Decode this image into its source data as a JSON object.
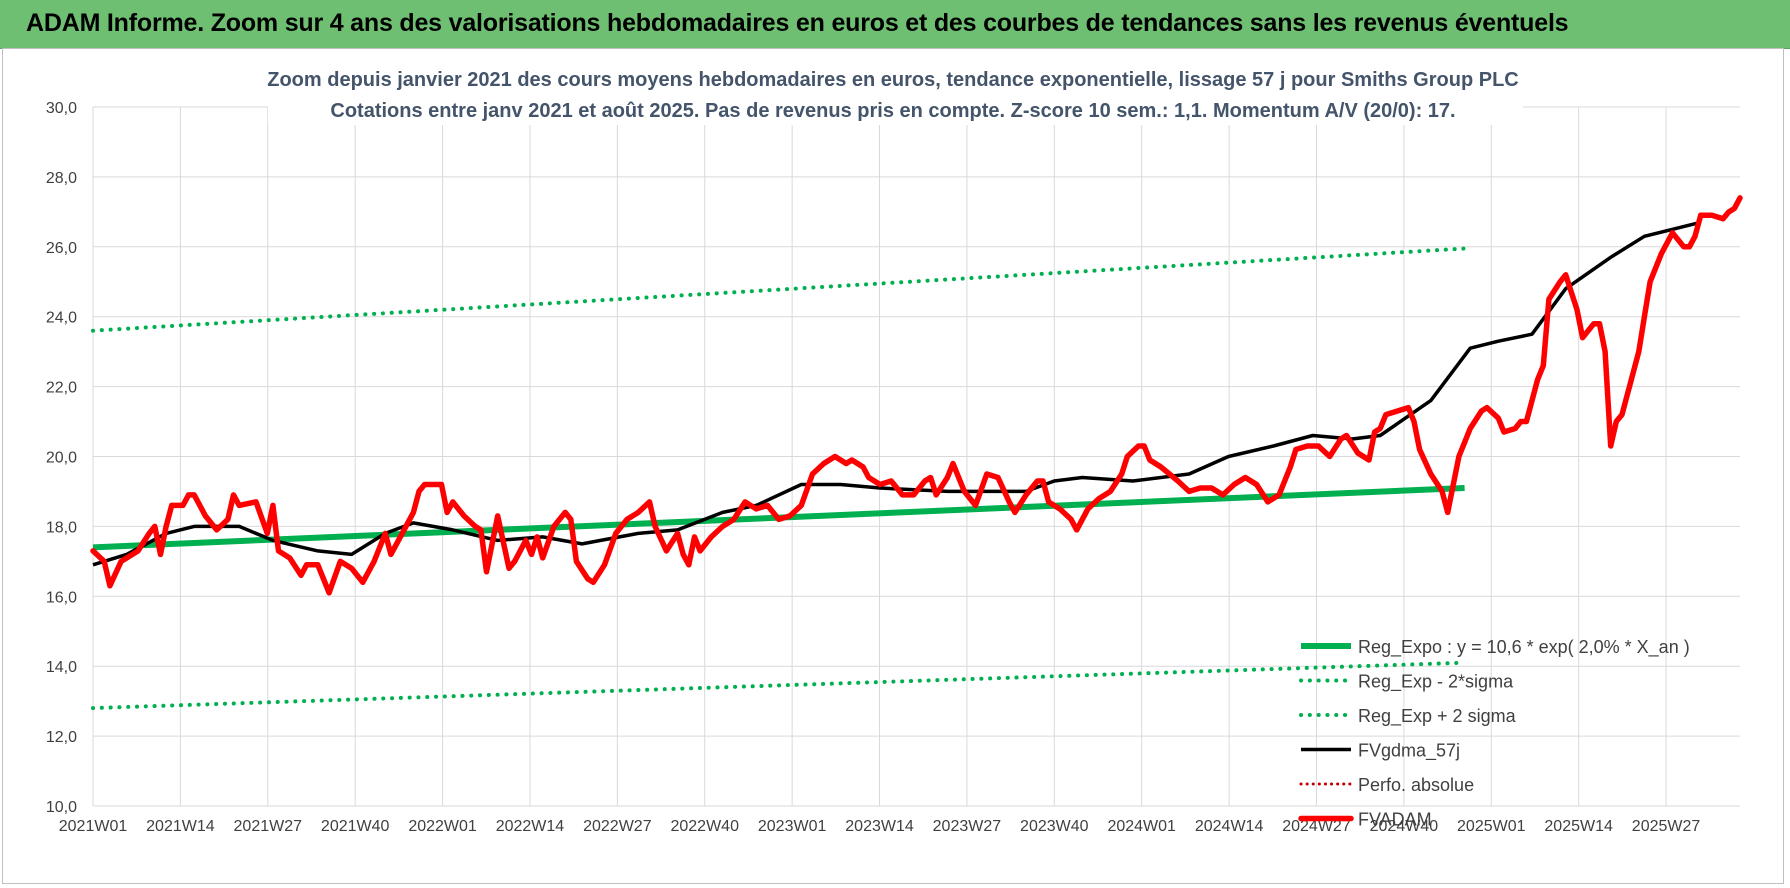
{
  "header": {
    "title": "ADAM Informe. Zoom sur 4 ans des valorisations hebdomadaires en euros et des courbes de tendances sans les revenus éventuels"
  },
  "chart_data": {
    "type": "line",
    "title": "Zoom depuis janvier 2021 des cours moyens hebdomadaires en euros, tendance exponentielle, lissage 57 j pour Smiths Group PLC",
    "subtitle": "Cotations entre janv 2021 et août 2025.  Pas de revenus pris en compte. Z-score 10 sem.: 1,1. Momentum A/V (20/0): 17.",
    "xlabel": "",
    "ylabel": "",
    "ylim": [
      10,
      30
    ],
    "yticks": [
      "10,0",
      "12,0",
      "14,0",
      "16,0",
      "18,0",
      "20,0",
      "22,0",
      "24,0",
      "26,0",
      "28,0",
      "30,0"
    ],
    "xticks": [
      "2021W01",
      "2021W14",
      "2021W27",
      "2021W40",
      "2022W01",
      "2022W14",
      "2022W27",
      "2022W40",
      "2023W01",
      "2023W14",
      "2023W27",
      "2023W40",
      "2024W01",
      "2024W14",
      "2024W27",
      "2024W40",
      "2025W01",
      "2025W14",
      "2025W27"
    ],
    "n_weeks": 245,
    "grid": true,
    "legend_position": "bottom-right",
    "colors": {
      "green": "#00b050",
      "black": "#000000",
      "red": "#ff0000",
      "dotted_red": "#c00000"
    },
    "series": [
      {
        "name": "Reg_Expo : y = 10,6 * exp( 2,0% *  X_an )",
        "style": "solid-green",
        "points": [
          [
            0,
            17.4
          ],
          [
            244,
            19.1
          ]
        ]
      },
      {
        "name": "Reg_Exp - 2*sigma",
        "style": "dotted-green",
        "points": [
          [
            0,
            12.8
          ],
          [
            244,
            14.1
          ]
        ]
      },
      {
        "name": "Reg_Exp + 2 sigma",
        "style": "dotted-green",
        "points": [
          [
            0,
            23.6
          ],
          [
            244,
            25.95
          ]
        ]
      },
      {
        "name": "FVgdma_57j",
        "style": "solid-black",
        "points": [
          [
            0,
            16.9
          ],
          [
            6,
            17.2
          ],
          [
            13,
            17.8
          ],
          [
            18,
            18.0
          ],
          [
            26,
            18.0
          ],
          [
            32,
            17.6
          ],
          [
            40,
            17.3
          ],
          [
            46,
            17.2
          ],
          [
            52,
            17.8
          ],
          [
            57,
            18.1
          ],
          [
            64,
            17.9
          ],
          [
            72,
            17.6
          ],
          [
            80,
            17.7
          ],
          [
            87,
            17.5
          ],
          [
            97,
            17.8
          ],
          [
            104,
            17.9
          ],
          [
            112,
            18.4
          ],
          [
            118,
            18.6
          ],
          [
            126,
            19.2
          ],
          [
            133,
            19.2
          ],
          [
            140,
            19.1
          ],
          [
            152,
            19.0
          ],
          [
            166,
            19.0
          ],
          [
            171,
            19.3
          ],
          [
            176,
            19.4
          ],
          [
            185,
            19.3
          ],
          [
            195,
            19.5
          ],
          [
            202,
            20.0
          ],
          [
            210,
            20.3
          ],
          [
            217,
            20.6
          ],
          [
            224,
            20.5
          ],
          [
            229,
            20.6
          ],
          [
            238,
            21.6
          ],
          [
            245,
            23.1
          ],
          [
            250,
            23.3
          ],
          [
            256,
            23.5
          ],
          [
            262,
            24.8
          ],
          [
            270,
            25.7
          ],
          [
            276,
            26.3
          ],
          [
            286,
            26.7
          ]
        ]
      },
      {
        "name": "Perfo. absolue",
        "style": "dotted-red",
        "points": []
      },
      {
        "name": "FVADAM",
        "style": "solid-red",
        "points": [
          [
            0,
            17.3
          ],
          [
            2,
            17.0
          ],
          [
            3,
            16.3
          ],
          [
            5,
            17.0
          ],
          [
            8,
            17.3
          ],
          [
            10,
            17.8
          ],
          [
            11,
            18.0
          ],
          [
            12,
            17.2
          ],
          [
            13,
            18.0
          ],
          [
            14,
            18.6
          ],
          [
            16,
            18.6
          ],
          [
            17,
            18.9
          ],
          [
            18,
            18.9
          ],
          [
            20,
            18.3
          ],
          [
            22,
            17.9
          ],
          [
            24,
            18.2
          ],
          [
            25,
            18.9
          ],
          [
            26,
            18.6
          ],
          [
            29,
            18.7
          ],
          [
            31,
            17.8
          ],
          [
            32,
            18.6
          ],
          [
            33,
            17.3
          ],
          [
            35,
            17.1
          ],
          [
            37,
            16.6
          ],
          [
            38,
            16.9
          ],
          [
            40,
            16.9
          ],
          [
            42,
            16.1
          ],
          [
            44,
            17.0
          ],
          [
            46,
            16.8
          ],
          [
            48,
            16.4
          ],
          [
            50,
            17.0
          ],
          [
            52,
            17.8
          ],
          [
            53,
            17.2
          ],
          [
            55,
            17.8
          ],
          [
            57,
            18.4
          ],
          [
            58,
            19.0
          ],
          [
            59,
            19.2
          ],
          [
            62,
            19.2
          ],
          [
            63,
            18.4
          ],
          [
            64,
            18.7
          ],
          [
            66,
            18.3
          ],
          [
            68,
            18.0
          ],
          [
            69,
            17.9
          ],
          [
            70,
            16.7
          ],
          [
            72,
            18.3
          ],
          [
            74,
            16.8
          ],
          [
            75,
            17.0
          ],
          [
            77,
            17.6
          ],
          [
            78,
            17.2
          ],
          [
            79,
            17.7
          ],
          [
            80,
            17.1
          ],
          [
            82,
            18.0
          ],
          [
            84,
            18.4
          ],
          [
            85,
            18.2
          ],
          [
            86,
            17.0
          ],
          [
            88,
            16.5
          ],
          [
            89,
            16.4
          ],
          [
            91,
            16.9
          ],
          [
            93,
            17.8
          ],
          [
            95,
            18.2
          ],
          [
            97,
            18.4
          ],
          [
            99,
            18.7
          ],
          [
            100,
            18.0
          ],
          [
            102,
            17.3
          ],
          [
            104,
            17.8
          ],
          [
            105,
            17.2
          ],
          [
            106,
            16.9
          ],
          [
            107,
            17.7
          ],
          [
            108,
            17.3
          ],
          [
            110,
            17.7
          ],
          [
            112,
            18.0
          ],
          [
            114,
            18.2
          ],
          [
            116,
            18.7
          ],
          [
            118,
            18.5
          ],
          [
            120,
            18.6
          ],
          [
            122,
            18.2
          ],
          [
            124,
            18.3
          ],
          [
            126,
            18.6
          ],
          [
            128,
            19.5
          ],
          [
            130,
            19.8
          ],
          [
            132,
            20.0
          ],
          [
            134,
            19.8
          ],
          [
            135,
            19.9
          ],
          [
            137,
            19.7
          ],
          [
            138,
            19.4
          ],
          [
            140,
            19.2
          ],
          [
            142,
            19.3
          ],
          [
            144,
            18.9
          ],
          [
            146,
            18.9
          ],
          [
            148,
            19.3
          ],
          [
            149,
            19.4
          ],
          [
            150,
            18.9
          ],
          [
            152,
            19.4
          ],
          [
            153,
            19.8
          ],
          [
            155,
            19.0
          ],
          [
            157,
            18.6
          ],
          [
            159,
            19.5
          ],
          [
            161,
            19.4
          ],
          [
            163,
            18.7
          ],
          [
            164,
            18.4
          ],
          [
            166,
            18.9
          ],
          [
            168,
            19.3
          ],
          [
            169,
            19.3
          ],
          [
            170,
            18.7
          ],
          [
            172,
            18.5
          ],
          [
            174,
            18.2
          ],
          [
            175,
            17.9
          ],
          [
            177,
            18.5
          ],
          [
            179,
            18.8
          ],
          [
            181,
            19.0
          ],
          [
            183,
            19.5
          ],
          [
            184,
            20.0
          ],
          [
            186,
            20.3
          ],
          [
            187,
            20.3
          ],
          [
            188,
            19.9
          ],
          [
            190,
            19.7
          ],
          [
            193,
            19.3
          ],
          [
            195,
            19.0
          ],
          [
            197,
            19.1
          ],
          [
            199,
            19.1
          ],
          [
            201,
            18.9
          ],
          [
            203,
            19.2
          ],
          [
            205,
            19.4
          ],
          [
            207,
            19.2
          ],
          [
            209,
            18.7
          ],
          [
            211,
            18.9
          ],
          [
            213,
            19.7
          ],
          [
            214,
            20.2
          ],
          [
            216,
            20.3
          ],
          [
            218,
            20.3
          ],
          [
            220,
            20.0
          ],
          [
            222,
            20.5
          ],
          [
            223,
            20.6
          ],
          [
            225,
            20.1
          ],
          [
            227,
            19.9
          ],
          [
            228,
            20.7
          ],
          [
            229,
            20.8
          ],
          [
            230,
            21.2
          ],
          [
            232,
            21.3
          ],
          [
            234,
            21.4
          ],
          [
            235,
            21.0
          ],
          [
            236,
            20.2
          ],
          [
            238,
            19.5
          ],
          [
            240,
            19.0
          ],
          [
            241,
            18.4
          ],
          [
            243,
            20.0
          ],
          [
            245,
            20.8
          ],
          [
            247,
            21.3
          ],
          [
            248,
            21.4
          ],
          [
            250,
            21.1
          ],
          [
            251,
            20.7
          ],
          [
            253,
            20.8
          ],
          [
            254,
            21.0
          ],
          [
            255,
            21.0
          ],
          [
            257,
            22.2
          ],
          [
            258,
            22.6
          ],
          [
            259,
            24.5
          ],
          [
            261,
            25.0
          ],
          [
            262,
            25.2
          ],
          [
            264,
            24.2
          ],
          [
            265,
            23.4
          ],
          [
            267,
            23.8
          ],
          [
            268,
            23.8
          ],
          [
            269,
            23.0
          ],
          [
            270,
            20.3
          ],
          [
            271,
            21.0
          ],
          [
            272,
            21.2
          ],
          [
            273,
            21.8
          ],
          [
            275,
            23.0
          ],
          [
            276,
            24.0
          ],
          [
            277,
            25.0
          ],
          [
            279,
            25.8
          ],
          [
            281,
            26.4
          ],
          [
            283,
            26.0
          ],
          [
            284,
            26.0
          ],
          [
            285,
            26.3
          ],
          [
            286,
            26.9
          ],
          [
            288,
            26.9
          ],
          [
            290,
            26.8
          ],
          [
            291,
            27.0
          ],
          [
            292,
            27.1
          ],
          [
            293,
            27.4
          ]
        ]
      }
    ]
  }
}
